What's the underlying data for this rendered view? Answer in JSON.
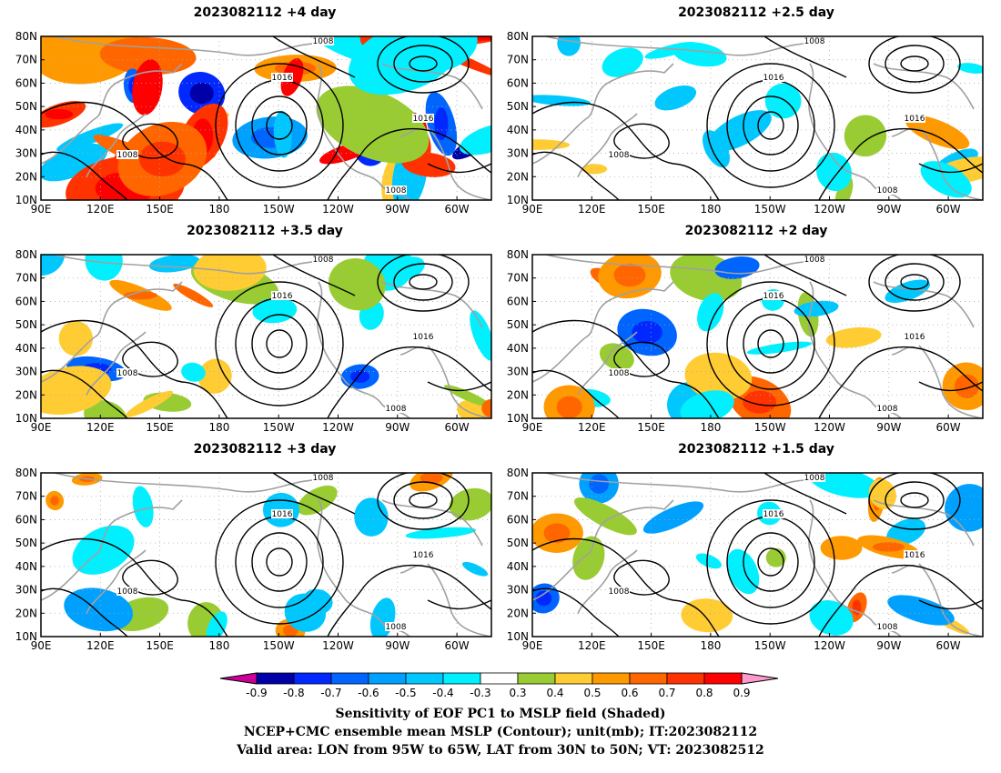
{
  "panels": [
    {
      "title": "2023082112  +4 day",
      "intensity": 1.0
    },
    {
      "title": "2023082112  +2.5 day",
      "intensity": 0.35
    },
    {
      "title": "2023082112  +3.5 day",
      "intensity": 0.6
    },
    {
      "title": "2023082112  +2 day",
      "intensity": 0.45
    },
    {
      "title": "2023082112  +3 day",
      "intensity": 0.35
    },
    {
      "title": "2023082112  +1.5 day",
      "intensity": 0.45
    }
  ],
  "lat_labels": [
    "80N",
    "70N",
    "60N",
    "50N",
    "40N",
    "30N",
    "20N",
    "10N"
  ],
  "lon_labels": [
    "90E",
    "120E",
    "150E",
    "180",
    "150W",
    "120W",
    "90W",
    "60W"
  ],
  "contour_labels": [
    "1008",
    "1016"
  ],
  "colorbar": {
    "levels": [
      "-0.9",
      "-0.8",
      "-0.7",
      "-0.6",
      "-0.5",
      "-0.4",
      "-0.3",
      "0.3",
      "0.4",
      "0.5",
      "0.6",
      "0.7",
      "0.8",
      "0.9"
    ],
    "colors": [
      "#0000a8",
      "#0028ff",
      "#0064ff",
      "#00a0ff",
      "#00c8ff",
      "#00f0ff",
      "#ffffff",
      "#99cc33",
      "#ffcc33",
      "#ff9900",
      "#ff6600",
      "#ff3300",
      "#ff0000"
    ],
    "under_color": "#cc0099",
    "over_color": "#ff99cc"
  },
  "caption": {
    "line1": "Sensitivity of EOF PC1 to MSLP field (Shaded)",
    "line2": "NCEP+CMC ensemble mean MSLP (Contour); unit(mb); IT:2023082112",
    "line3": "Valid area: LON from 95W to 65W, LAT from 30N to 50N; VT: 2023082512"
  }
}
